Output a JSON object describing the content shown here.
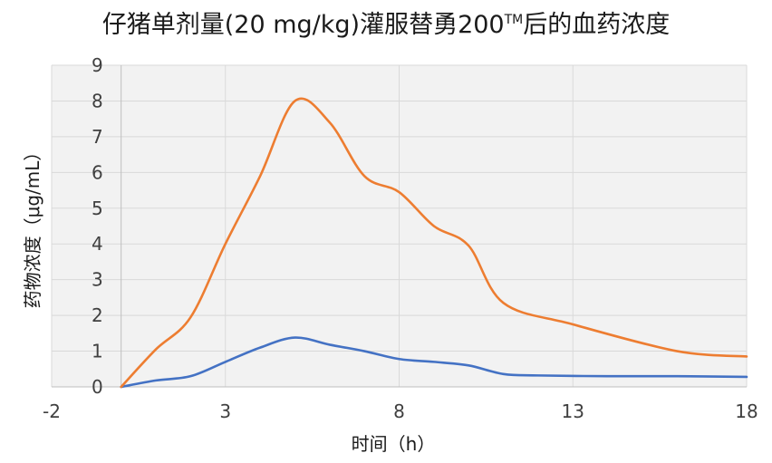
{
  "chart_data": {
    "type": "line",
    "title": "仔猪单剂量(20 mg/kg)灌服替勇200后的血药浓度",
    "title_prefix": "仔猪单剂量(20 mg/kg)灌服替勇200",
    "title_superscript": "TM",
    "title_suffix": "后的血药浓度",
    "xlabel": "时间（h）",
    "ylabel": "药物浓度（μg/mL）",
    "xlim": [
      -2,
      18
    ],
    "ylim": [
      0,
      9
    ],
    "x_ticks": [
      -2,
      3,
      8,
      13,
      18
    ],
    "y_ticks": [
      0,
      1,
      2,
      3,
      4,
      5,
      6,
      7,
      8,
      9
    ],
    "x_tick_labels": [
      "-2",
      "3",
      "8",
      "13",
      "18"
    ],
    "y_tick_labels": [
      "0",
      "1",
      "2",
      "3",
      "4",
      "5",
      "6",
      "7",
      "8",
      "9"
    ],
    "grid": true,
    "legend": "none",
    "series": [
      {
        "color": "#4472c4",
        "points": [
          [
            0,
            0
          ],
          [
            1,
            0.18
          ],
          [
            2,
            0.3
          ],
          [
            3,
            0.7
          ],
          [
            4,
            1.1
          ],
          [
            5,
            1.38
          ],
          [
            6,
            1.18
          ],
          [
            7,
            1.0
          ],
          [
            8,
            0.78
          ],
          [
            9,
            0.7
          ],
          [
            10,
            0.6
          ],
          [
            11,
            0.36
          ],
          [
            12,
            0.32
          ],
          [
            14,
            0.3
          ],
          [
            16,
            0.3
          ],
          [
            18,
            0.28
          ]
        ]
      },
      {
        "color": "#ed7d31",
        "points": [
          [
            0,
            0
          ],
          [
            1,
            1.05
          ],
          [
            2,
            1.95
          ],
          [
            3,
            4.0
          ],
          [
            4,
            5.9
          ],
          [
            5,
            8.0
          ],
          [
            6,
            7.4
          ],
          [
            7,
            5.9
          ],
          [
            8,
            5.45
          ],
          [
            9,
            4.5
          ],
          [
            10,
            3.95
          ],
          [
            11,
            2.35
          ],
          [
            13,
            1.75
          ],
          [
            16,
            1.0
          ],
          [
            18,
            0.85
          ]
        ]
      }
    ]
  }
}
